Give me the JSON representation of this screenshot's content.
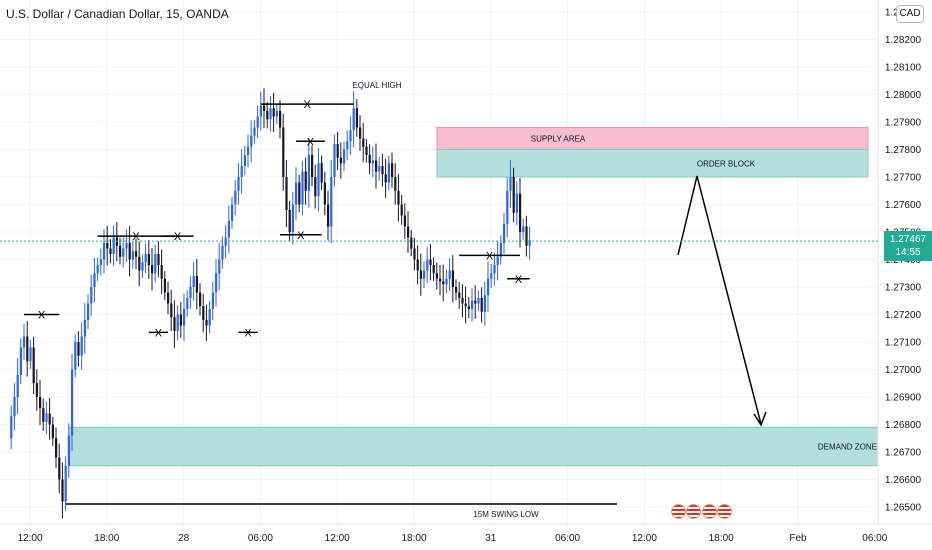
{
  "header": {
    "symbol_title": "U.S. Dollar / Canadian Dollar, 15, OANDA",
    "currency_label": "CAD"
  },
  "last_price": {
    "price": "1.27467",
    "countdown": "14:55"
  },
  "colors": {
    "bull": "#2962ff",
    "bear": "#131722",
    "supply": "#f8bbd0",
    "demand": "#b2dfdb",
    "badge": "#22ab94"
  },
  "icons": {
    "events": "flag-icon"
  },
  "chart_data": {
    "type": "candlestick",
    "ylim": [
      1.2645,
      1.2835
    ],
    "y_ticks": [
      "1.28300",
      "1.28200",
      "1.28100",
      "1.28000",
      "1.27900",
      "1.27800",
      "1.27700",
      "1.27600",
      "1.27500",
      "1.27400",
      "1.27300",
      "1.27200",
      "1.27100",
      "1.27000",
      "1.26900",
      "1.26800",
      "1.26700",
      "1.26600",
      "1.26500"
    ],
    "x_ticks": [
      "12:00",
      "18:00",
      "28",
      "06:00",
      "12:00",
      "18:00",
      "31",
      "06:00",
      "12:00",
      "18:00",
      "Feb",
      "06:00"
    ],
    "x_tick_index": [
      0,
      24,
      48,
      72,
      96,
      120,
      144,
      168,
      192,
      216,
      240,
      264
    ],
    "path": [
      1.2675,
      1.2683,
      1.269,
      1.2698,
      1.2708,
      1.2712,
      1.2703,
      1.2708,
      1.2695,
      1.269,
      1.2686,
      1.2681,
      1.2684,
      1.268,
      1.2675,
      1.2668,
      1.266,
      1.2652,
      1.2665,
      1.2676,
      1.27,
      1.271,
      1.2705,
      1.2712,
      1.2718,
      1.2724,
      1.273,
      1.2735,
      1.2738,
      1.274,
      1.2746,
      1.2744,
      1.2742,
      1.2748,
      1.2745,
      1.2741,
      1.2744,
      1.2746,
      1.274,
      1.2743,
      1.2741,
      1.2736,
      1.2739,
      1.2742,
      1.2738,
      1.2735,
      1.2742,
      1.2738,
      1.2733,
      1.2728,
      1.2724,
      1.2719,
      1.2714,
      1.272,
      1.2716,
      1.2722,
      1.2726,
      1.273,
      1.2734,
      1.2728,
      1.2723,
      1.2718,
      1.2716,
      1.2722,
      1.2728,
      1.2735,
      1.274,
      1.2745,
      1.2748,
      1.2754,
      1.276,
      1.2765,
      1.277,
      1.2774,
      1.2778,
      1.2781,
      1.2785,
      1.2788,
      1.2792,
      1.2796,
      1.2794,
      1.2791,
      1.2795,
      1.2792,
      1.2794,
      1.2788,
      1.277,
      1.2758,
      1.275,
      1.276,
      1.2768,
      1.276,
      1.2772,
      1.2765,
      1.2778,
      1.277,
      1.2763,
      1.2775,
      1.2768,
      1.276,
      1.2752,
      1.277,
      1.2782,
      1.2777,
      1.2775,
      1.278,
      1.2783,
      1.2787,
      1.2795,
      1.2788,
      1.2784,
      1.2781,
      1.2778,
      1.2775,
      1.2776,
      1.2772,
      1.2774,
      1.2771,
      1.2768,
      1.2775,
      1.277,
      1.2765,
      1.276,
      1.2756,
      1.2752,
      1.2748,
      1.2744,
      1.274,
      1.2736,
      1.2733,
      1.2736,
      1.274,
      1.2738,
      1.2735,
      1.2733,
      1.2732,
      1.2731,
      1.2733,
      1.2736,
      1.273,
      1.2728,
      1.2726,
      1.2724,
      1.2723,
      1.2722,
      1.2725,
      1.2724,
      1.2726,
      1.2721,
      1.2727,
      1.2733,
      1.2735,
      1.2738,
      1.2741,
      1.2746,
      1.2753,
      1.2765,
      1.277,
      1.2757,
      1.2764,
      1.275,
      1.2752,
      1.2745,
      1.2747
    ],
    "supply_zone": {
      "label": "SUPPLY AREA",
      "from": 1.278,
      "to": 1.2788
    },
    "order_block": {
      "label": "ORDER BLOCK",
      "from": 1.277,
      "to": 1.278
    },
    "demand_zone": {
      "label": "DEMAND ZONE",
      "from": 1.2665,
      "to": 1.2679
    },
    "annotations": {
      "equal_high": "EQUAL HIGH",
      "swing_low": "15M SWING LOW",
      "x_mark": "X"
    },
    "levels": [
      {
        "from": 5,
        "to": 16,
        "y": 1.272
      },
      {
        "from": 28,
        "to": 52,
        "y": 1.27485
      },
      {
        "from": 44,
        "to": 50,
        "y": 1.27135
      },
      {
        "from": 48,
        "to": 58,
        "y": 1.27485
      },
      {
        "from": 72,
        "to": 78,
        "y": 1.27135
      },
      {
        "from": 79,
        "to": 108,
        "y": 1.27965
      },
      {
        "from": 85,
        "to": 98,
        "y": 1.2749
      },
      {
        "from": 90,
        "to": 99,
        "y": 1.2783
      },
      {
        "from": 141,
        "to": 160,
        "y": 1.27415
      },
      {
        "from": 156,
        "to": 163,
        "y": 1.2733
      }
    ]
  }
}
